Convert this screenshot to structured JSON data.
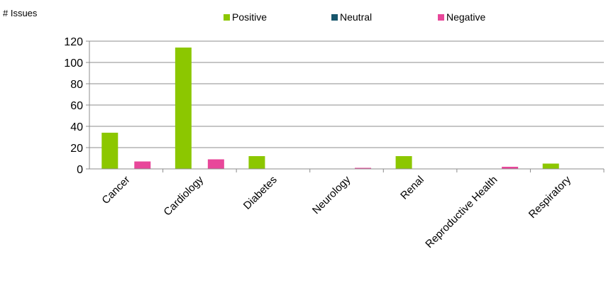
{
  "chart_data": {
    "type": "bar",
    "ylabel": "# Issues",
    "ylim": [
      0,
      120
    ],
    "yticks": [
      0,
      20,
      40,
      60,
      80,
      100,
      120
    ],
    "grid": "horizontal",
    "legend_position": "top",
    "categories": [
      "Cancer",
      "Cardiology",
      "Diabetes",
      "Neurology",
      "Renal",
      "Reproductive Health",
      "Respiratory"
    ],
    "series": [
      {
        "name": "Positive",
        "color": "#8cc700",
        "values": [
          34,
          114,
          12,
          0,
          12,
          0,
          5
        ]
      },
      {
        "name": "Neutral",
        "color": "#17566c",
        "values": [
          0,
          0,
          0,
          0,
          0,
          0,
          0
        ]
      },
      {
        "name": "Negative",
        "color": "#e8479a",
        "values": [
          7,
          9,
          0,
          1,
          0,
          2,
          0
        ]
      }
    ]
  }
}
